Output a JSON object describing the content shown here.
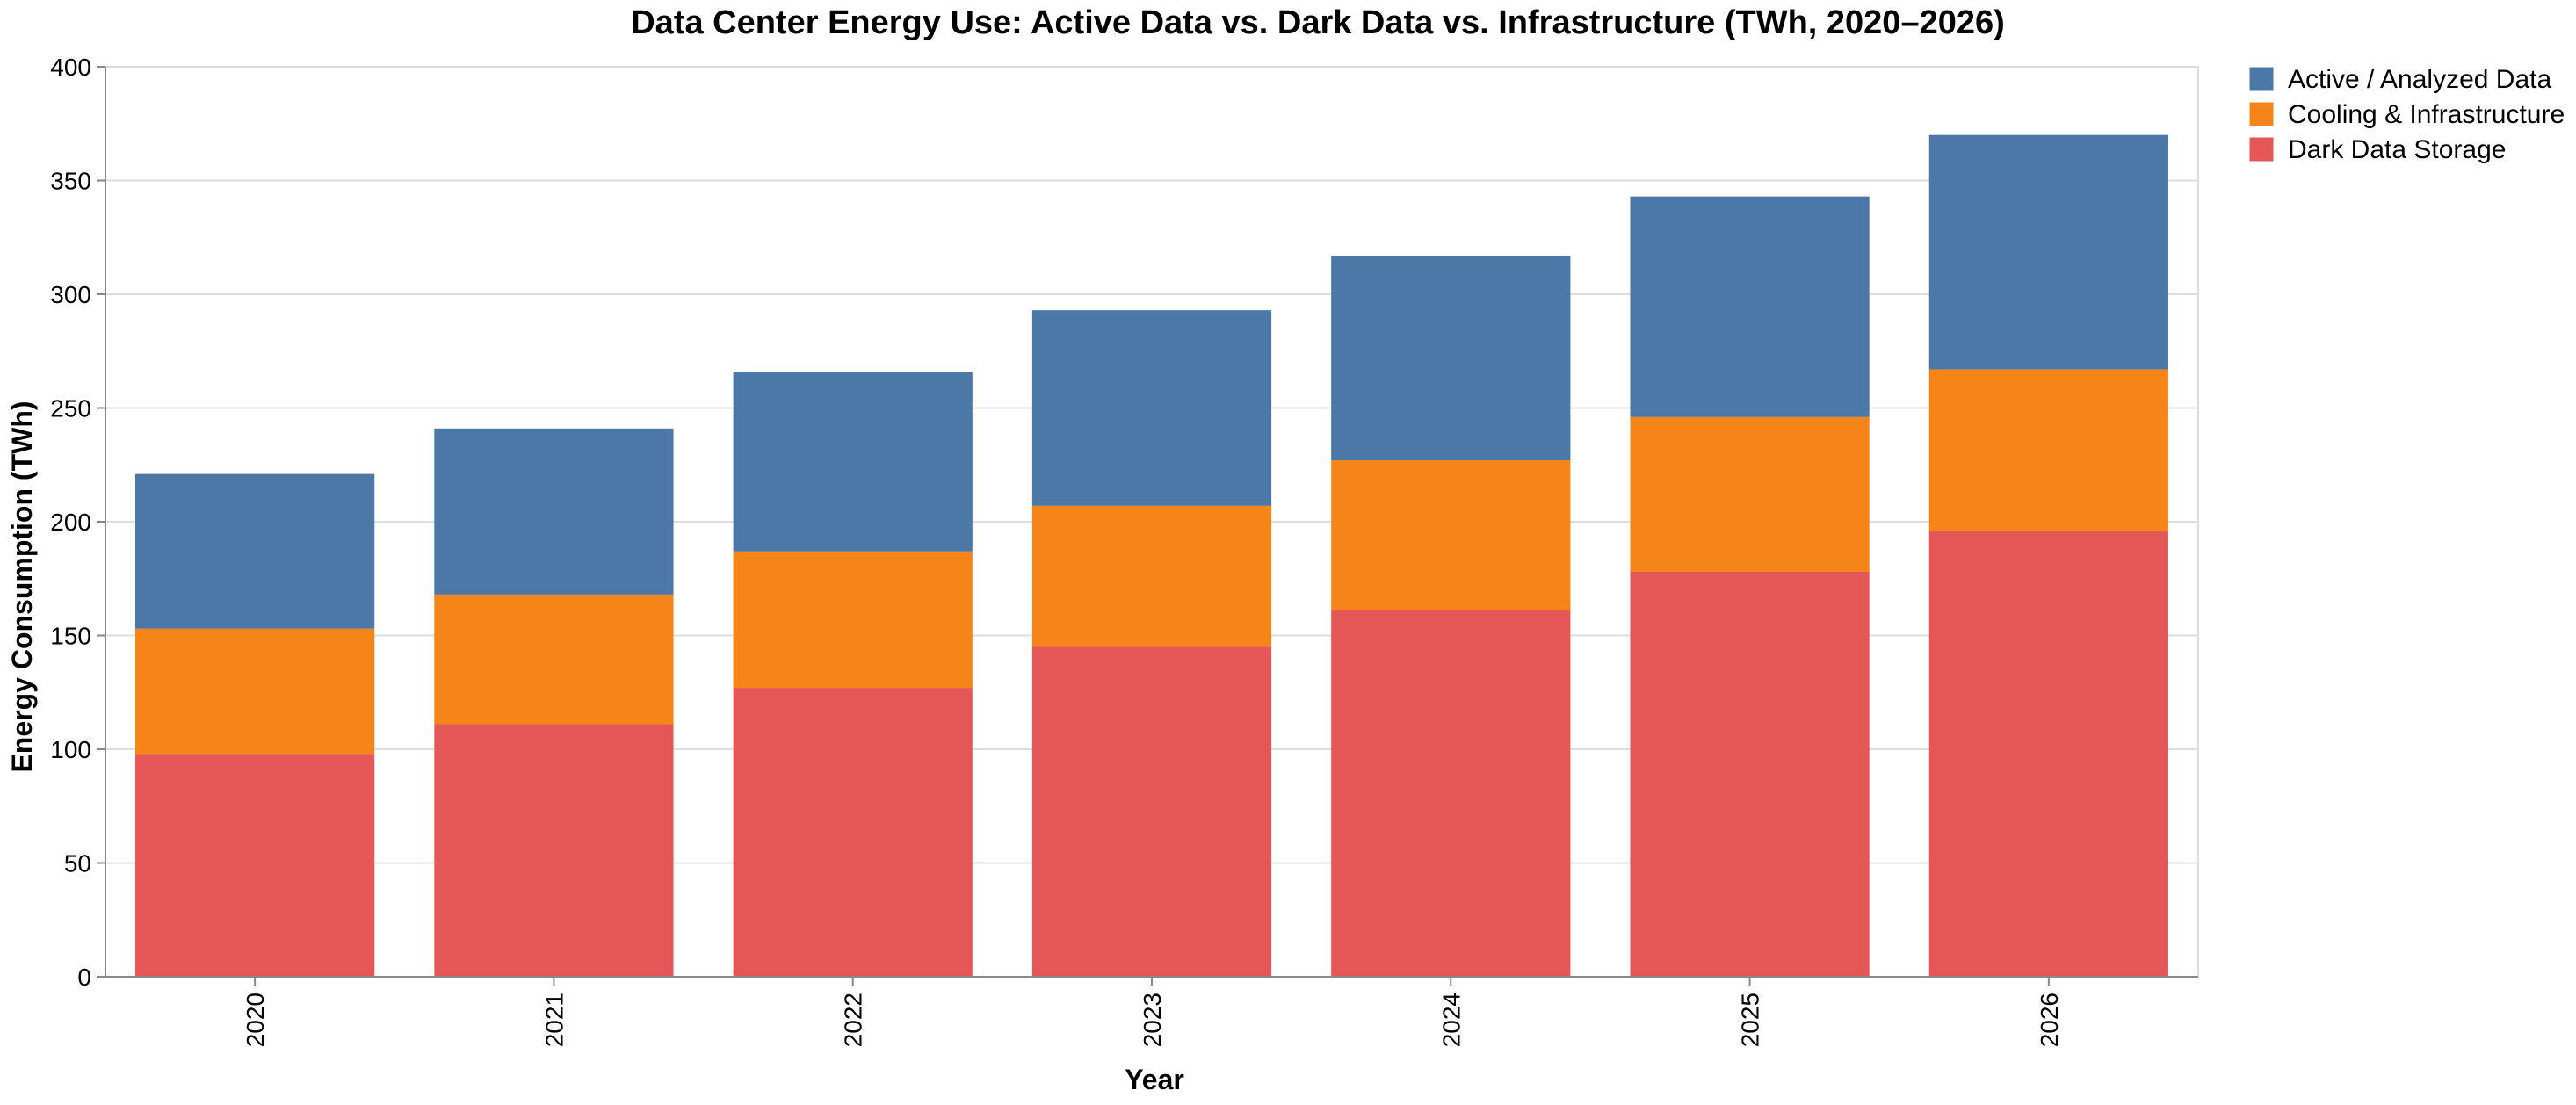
{
  "chart_data": {
    "type": "bar",
    "stacked": true,
    "title": "Data Center Energy Use: Active Data vs. Dark Data vs. Infrastructure (TWh, 2020–2026)",
    "xlabel": "Year",
    "ylabel": "Energy Consumption (TWh)",
    "ylim": [
      0,
      400
    ],
    "yticks": [
      0,
      50,
      100,
      150,
      200,
      250,
      300,
      350,
      400
    ],
    "grid": true,
    "legend_position": "top-right",
    "categories": [
      "2020",
      "2021",
      "2022",
      "2023",
      "2024",
      "2025",
      "2026"
    ],
    "series": [
      {
        "name": "Dark Data Storage",
        "color": "#e45756",
        "values": [
          98,
          111,
          127,
          145,
          161,
          178,
          196
        ]
      },
      {
        "name": "Cooling & Infrastructure",
        "color": "#f58518",
        "values": [
          55,
          57,
          60,
          62,
          66,
          68,
          71
        ]
      },
      {
        "name": "Active / Analyzed Data",
        "color": "#4c78a8",
        "values": [
          68,
          73,
          79,
          86,
          90,
          97,
          103
        ]
      }
    ],
    "legend_order": [
      "Active / Analyzed Data",
      "Cooling & Infrastructure",
      "Dark Data Storage"
    ]
  }
}
